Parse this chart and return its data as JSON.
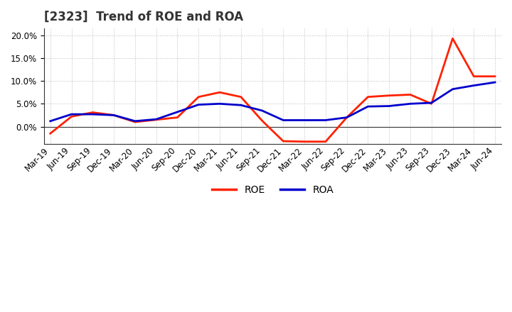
{
  "title": "[2323]  Trend of ROE and ROA",
  "x_labels": [
    "Mar-19",
    "Jun-19",
    "Sep-19",
    "Dec-19",
    "Mar-20",
    "Jun-20",
    "Sep-20",
    "Dec-20",
    "Mar-21",
    "Jun-21",
    "Sep-21",
    "Dec-21",
    "Mar-22",
    "Jun-22",
    "Sep-22",
    "Dec-22",
    "Mar-23",
    "Jun-23",
    "Sep-23",
    "Dec-23",
    "Mar-24",
    "Jun-24"
  ],
  "roe": [
    -1.5,
    2.2,
    3.1,
    2.5,
    1.0,
    1.5,
    2.0,
    6.5,
    7.5,
    6.5,
    1.3,
    -3.2,
    -3.3,
    -3.3,
    2.0,
    6.5,
    6.8,
    7.0,
    5.0,
    19.3,
    11.0,
    11.0
  ],
  "roa": [
    1.2,
    2.7,
    2.7,
    2.5,
    1.2,
    1.6,
    3.2,
    4.8,
    5.0,
    4.7,
    3.5,
    1.4,
    1.4,
    1.4,
    2.0,
    4.4,
    4.5,
    5.0,
    5.2,
    8.2,
    9.0,
    9.7
  ],
  "roe_color": "#ff2200",
  "roa_color": "#0000cc",
  "ylim_min": -3.8,
  "ylim_max": 21.5,
  "yticks": [
    0.0,
    5.0,
    10.0,
    15.0,
    20.0
  ],
  "bg_color": "#ffffff",
  "plot_bg_color": "#ffffff",
  "grid_color": "#bbbbbb",
  "title_fontsize": 12,
  "label_fontsize": 8.5,
  "legend_fontsize": 10,
  "linewidth": 2.0
}
